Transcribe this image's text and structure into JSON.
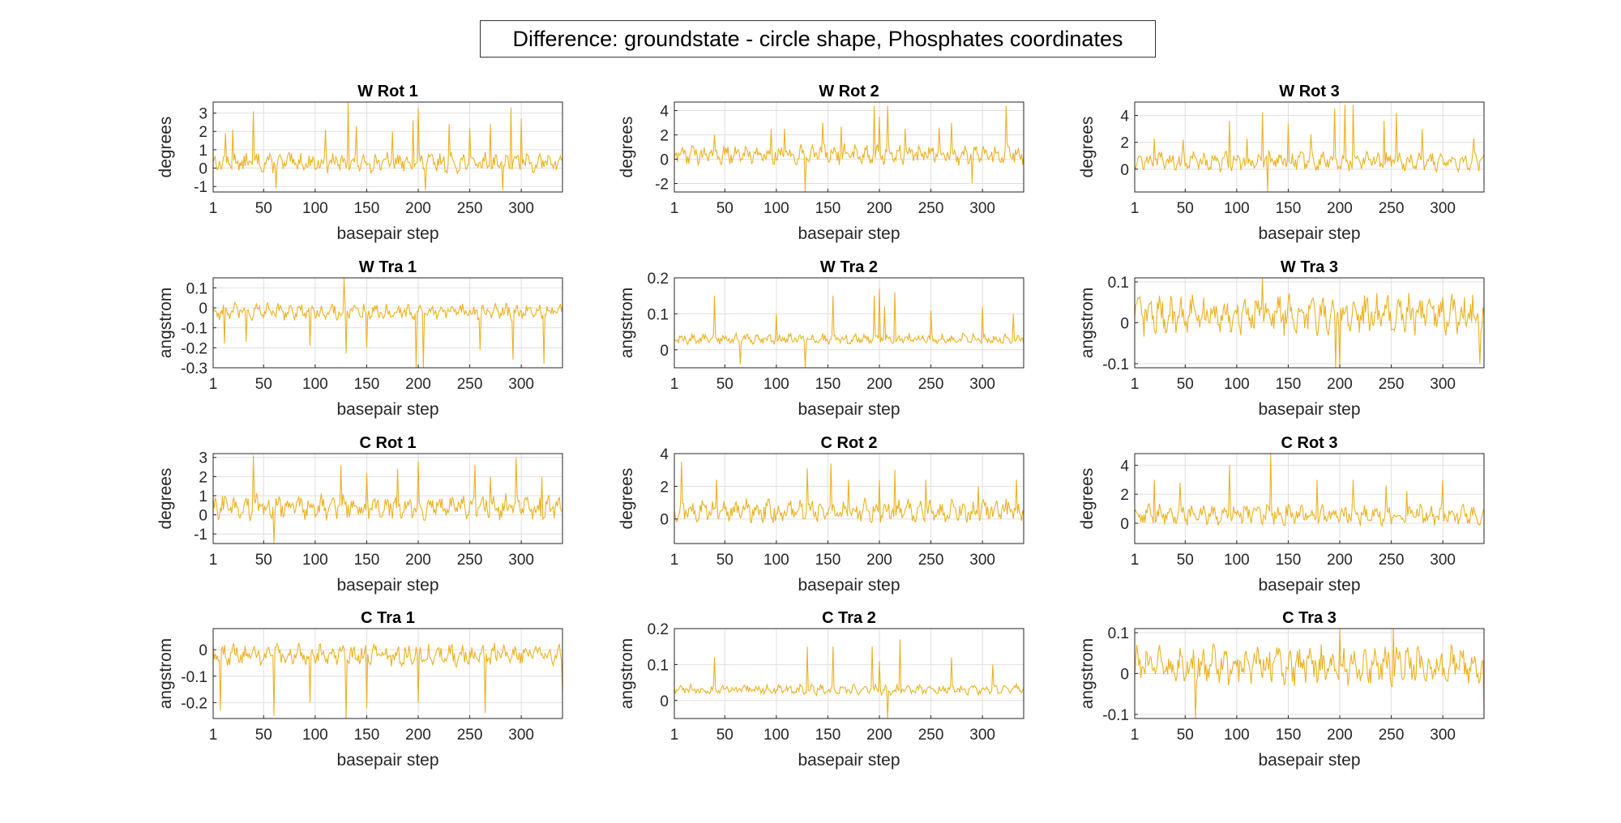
{
  "figure": {
    "title": "Difference: groundstate - circle shape, Phosphates coordinates",
    "line_color": "#EDB120",
    "grid_color": "#DFDFDF",
    "axes_color": "#262626"
  },
  "chart_data": [
    {
      "type": "line",
      "title": "W Rot 1",
      "xlabel": "basepair step",
      "ylabel": "degrees",
      "xlim": [
        1,
        340
      ],
      "ylim": [
        -1.3,
        3.6
      ],
      "xticks": [
        1,
        50,
        100,
        150,
        200,
        250,
        300
      ],
      "yticks": [
        -1,
        0,
        1,
        2,
        3
      ],
      "grid": true,
      "n_points": 340,
      "center": 0.3,
      "spread": 0.45,
      "spikes": [
        [
          13,
          1.9
        ],
        [
          20,
          2.1
        ],
        [
          40,
          3.1
        ],
        [
          62,
          -1.1
        ],
        [
          110,
          2.1
        ],
        [
          132,
          3.6
        ],
        [
          140,
          2.3
        ],
        [
          175,
          2.0
        ],
        [
          195,
          2.6
        ],
        [
          200,
          3.3
        ],
        [
          207,
          -1.2
        ],
        [
          230,
          2.4
        ],
        [
          250,
          2.2
        ],
        [
          270,
          2.4
        ],
        [
          282,
          -1.2
        ],
        [
          290,
          3.3
        ],
        [
          300,
          2.7
        ]
      ]
    },
    {
      "type": "line",
      "title": "W Rot 2",
      "xlabel": "basepair step",
      "ylabel": "degrees",
      "xlim": [
        1,
        340
      ],
      "ylim": [
        -2.7,
        4.7
      ],
      "xticks": [
        1,
        50,
        100,
        150,
        200,
        250,
        300
      ],
      "yticks": [
        -2,
        0,
        2,
        4
      ],
      "grid": true,
      "n_points": 340,
      "center": 0.4,
      "spread": 0.7,
      "spikes": [
        [
          40,
          2.0
        ],
        [
          95,
          2.5
        ],
        [
          108,
          2.5
        ],
        [
          128,
          -2.7
        ],
        [
          145,
          3.0
        ],
        [
          163,
          2.7
        ],
        [
          195,
          4.4
        ],
        [
          200,
          3.5
        ],
        [
          208,
          4.4
        ],
        [
          225,
          2.5
        ],
        [
          258,
          2.6
        ],
        [
          270,
          3.0
        ],
        [
          290,
          -2.0
        ],
        [
          323,
          4.4
        ]
      ]
    },
    {
      "type": "line",
      "title": "W Rot 3",
      "xlabel": "basepair step",
      "ylabel": "degrees",
      "xlim": [
        1,
        340
      ],
      "ylim": [
        -1.7,
        5.0
      ],
      "xticks": [
        1,
        50,
        100,
        150,
        200,
        250,
        300
      ],
      "yticks": [
        0,
        2,
        4
      ],
      "grid": true,
      "n_points": 340,
      "center": 0.6,
      "spread": 0.6,
      "spikes": [
        [
          20,
          2.3
        ],
        [
          48,
          2.2
        ],
        [
          93,
          3.6
        ],
        [
          110,
          2.3
        ],
        [
          125,
          4.2
        ],
        [
          130,
          -1.7
        ],
        [
          150,
          3.4
        ],
        [
          172,
          2.6
        ],
        [
          195,
          4.5
        ],
        [
          205,
          4.8
        ],
        [
          213,
          4.8
        ],
        [
          243,
          3.6
        ],
        [
          255,
          4.2
        ],
        [
          280,
          3.0
        ],
        [
          330,
          2.3
        ]
      ]
    },
    {
      "type": "line",
      "title": "W Tra 1",
      "xlabel": "basepair step",
      "ylabel": "angstrom",
      "xlim": [
        1,
        340
      ],
      "ylim": [
        -0.3,
        0.15
      ],
      "xticks": [
        1,
        50,
        100,
        150,
        200,
        250,
        300
      ],
      "yticks": [
        -0.3,
        -0.2,
        -0.1,
        0,
        0.1
      ],
      "grid": true,
      "n_points": 340,
      "center": -0.02,
      "spread": 0.035,
      "spikes": [
        [
          12,
          -0.18
        ],
        [
          33,
          -0.17
        ],
        [
          95,
          -0.19
        ],
        [
          128,
          0.15
        ],
        [
          130,
          -0.23
        ],
        [
          150,
          -0.2
        ],
        [
          198,
          -0.3
        ],
        [
          205,
          -0.3
        ],
        [
          260,
          -0.21
        ],
        [
          292,
          -0.26
        ],
        [
          322,
          -0.28
        ]
      ]
    },
    {
      "type": "line",
      "title": "W Tra 2",
      "xlabel": "basepair step",
      "ylabel": "angstrom",
      "xlim": [
        1,
        340
      ],
      "ylim": [
        -0.05,
        0.2
      ],
      "xticks": [
        1,
        50,
        100,
        150,
        200,
        250,
        300
      ],
      "yticks": [
        0,
        0.1,
        0.2
      ],
      "grid": true,
      "n_points": 340,
      "center": 0.03,
      "spread": 0.012,
      "spikes": [
        [
          40,
          0.15
        ],
        [
          65,
          -0.04
        ],
        [
          100,
          0.1
        ],
        [
          128,
          -0.05
        ],
        [
          155,
          0.15
        ],
        [
          195,
          0.15
        ],
        [
          200,
          0.17
        ],
        [
          205,
          0.12
        ],
        [
          215,
          0.16
        ],
        [
          250,
          0.11
        ],
        [
          300,
          0.12
        ],
        [
          330,
          0.1
        ]
      ]
    },
    {
      "type": "line",
      "title": "W Tra 3",
      "xlabel": "basepair step",
      "ylabel": "angstrom",
      "xlim": [
        1,
        340
      ],
      "ylim": [
        -0.11,
        0.11
      ],
      "xticks": [
        1,
        50,
        100,
        150,
        200,
        250,
        300
      ],
      "yticks": [
        -0.1,
        0,
        0.1
      ],
      "grid": true,
      "n_points": 340,
      "center": 0.02,
      "spread": 0.04,
      "spikes": [
        [
          125,
          0.11
        ],
        [
          196,
          -0.11
        ],
        [
          200,
          -0.11
        ],
        [
          336,
          -0.1
        ]
      ]
    },
    {
      "type": "line",
      "title": "C Rot 1",
      "xlabel": "basepair step",
      "ylabel": "degrees",
      "xlim": [
        1,
        340
      ],
      "ylim": [
        -1.5,
        3.2
      ],
      "xticks": [
        1,
        50,
        100,
        150,
        200,
        250,
        300
      ],
      "yticks": [
        -1,
        0,
        1,
        2,
        3
      ],
      "grid": true,
      "n_points": 340,
      "center": 0.4,
      "spread": 0.55,
      "spikes": [
        [
          40,
          3.1
        ],
        [
          60,
          -1.5
        ],
        [
          125,
          2.6
        ],
        [
          150,
          2.2
        ],
        [
          180,
          2.4
        ],
        [
          200,
          2.8
        ],
        [
          255,
          2.6
        ],
        [
          270,
          2.0
        ],
        [
          295,
          3.0
        ],
        [
          320,
          2.0
        ]
      ]
    },
    {
      "type": "line",
      "title": "C Rot 2",
      "xlabel": "basepair step",
      "ylabel": "degrees",
      "xlim": [
        1,
        340
      ],
      "ylim": [
        -1.5,
        4.0
      ],
      "xticks": [
        1,
        50,
        100,
        150,
        200,
        250,
        300
      ],
      "yticks": [
        0,
        2,
        4
      ],
      "grid": true,
      "n_points": 340,
      "center": 0.5,
      "spread": 0.6,
      "spikes": [
        [
          8,
          3.5
        ],
        [
          42,
          2.4
        ],
        [
          130,
          3.1
        ],
        [
          153,
          3.4
        ],
        [
          170,
          2.4
        ],
        [
          200,
          2.4
        ],
        [
          215,
          3.0
        ],
        [
          245,
          2.4
        ],
        [
          296,
          2.0
        ],
        [
          333,
          2.4
        ]
      ]
    },
    {
      "type": "line",
      "title": "C Rot 3",
      "xlabel": "basepair step",
      "ylabel": "degrees",
      "xlim": [
        1,
        340
      ],
      "ylim": [
        -1.4,
        4.8
      ],
      "xticks": [
        1,
        50,
        100,
        150,
        200,
        250,
        300
      ],
      "yticks": [
        0,
        2,
        4
      ],
      "grid": true,
      "n_points": 340,
      "center": 0.6,
      "spread": 0.6,
      "spikes": [
        [
          20,
          3.0
        ],
        [
          45,
          2.8
        ],
        [
          93,
          4.0
        ],
        [
          133,
          4.8
        ],
        [
          148,
          1.2
        ],
        [
          178,
          3.0
        ],
        [
          213,
          3.0
        ],
        [
          245,
          2.6
        ],
        [
          265,
          2.2
        ],
        [
          300,
          3.0
        ]
      ]
    },
    {
      "type": "line",
      "title": "C Tra 1",
      "xlabel": "basepair step",
      "ylabel": "angstrom",
      "xlim": [
        1,
        340
      ],
      "ylim": [
        -0.26,
        0.08
      ],
      "xticks": [
        1,
        50,
        100,
        150,
        200,
        250,
        300
      ],
      "yticks": [
        -0.2,
        -0.1,
        0
      ],
      "grid": true,
      "n_points": 340,
      "center": -0.02,
      "spread": 0.035,
      "spikes": [
        [
          8,
          -0.23
        ],
        [
          60,
          -0.25
        ],
        [
          95,
          -0.2
        ],
        [
          130,
          -0.26
        ],
        [
          150,
          -0.22
        ],
        [
          200,
          -0.2
        ],
        [
          265,
          -0.24
        ],
        [
          340,
          -0.16
        ]
      ]
    },
    {
      "type": "line",
      "title": "C Tra 2",
      "xlabel": "basepair step",
      "ylabel": "angstrom",
      "xlim": [
        1,
        340
      ],
      "ylim": [
        -0.05,
        0.2
      ],
      "xticks": [
        1,
        50,
        100,
        150,
        200,
        250,
        300
      ],
      "yticks": [
        0,
        0.1,
        0.2
      ],
      "grid": true,
      "n_points": 340,
      "center": 0.03,
      "spread": 0.012,
      "spikes": [
        [
          40,
          0.12
        ],
        [
          130,
          0.15
        ],
        [
          155,
          0.15
        ],
        [
          193,
          0.15
        ],
        [
          200,
          0.11
        ],
        [
          208,
          -0.05
        ],
        [
          220,
          0.17
        ],
        [
          270,
          0.12
        ],
        [
          310,
          0.1
        ]
      ]
    },
    {
      "type": "line",
      "title": "C Tra 3",
      "xlabel": "basepair step",
      "ylabel": "angstrom",
      "xlim": [
        1,
        340
      ],
      "ylim": [
        -0.11,
        0.11
      ],
      "xticks": [
        1,
        50,
        100,
        150,
        200,
        250,
        300
      ],
      "yticks": [
        -0.1,
        0,
        0.1
      ],
      "grid": true,
      "n_points": 340,
      "center": 0.02,
      "spread": 0.04,
      "spikes": [
        [
          60,
          -0.11
        ],
        [
          200,
          0.11
        ],
        [
          252,
          0.11
        ],
        [
          340,
          -0.1
        ]
      ]
    }
  ]
}
